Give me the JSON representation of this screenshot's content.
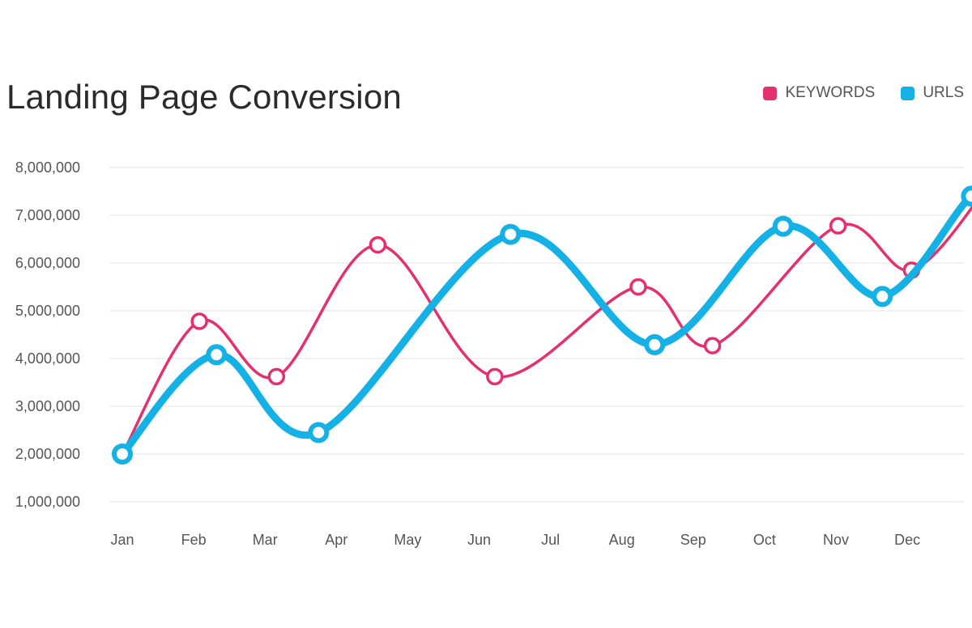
{
  "chart_data": {
    "type": "line",
    "title": "Landing Page Conversion",
    "xlabel": "",
    "ylabel": "",
    "categories": [
      "Jan",
      "Feb",
      "Mar",
      "Apr",
      "May",
      "Jun",
      "Jul",
      "Aug",
      "Sep",
      "Oct",
      "Nov",
      "Dec"
    ],
    "yticks": [
      "1,000,000",
      "2,000,000",
      "3,000,000",
      "4,000,000",
      "5,000,000",
      "6,000,000",
      "7,000,000",
      "8,000,000"
    ],
    "ylim": [
      1000000,
      8000000
    ],
    "grid": true,
    "legend_placement": "top-right",
    "series": [
      {
        "name": "KEYWORDS",
        "color": "#e5306e",
        "points": [
          {
            "x": 0.0,
            "y": 2000000
          },
          {
            "x": 1.08,
            "y": 4780000
          },
          {
            "x": 2.16,
            "y": 3620000
          },
          {
            "x": 3.58,
            "y": 6380000
          },
          {
            "x": 5.22,
            "y": 3620000
          },
          {
            "x": 7.23,
            "y": 5500000
          },
          {
            "x": 8.27,
            "y": 4270000
          },
          {
            "x": 10.03,
            "y": 6780000
          },
          {
            "x": 11.06,
            "y": 5850000
          },
          {
            "x": 12.11,
            "y": 7560000
          }
        ]
      },
      {
        "name": "URLS",
        "color": "#14b1e7",
        "points": [
          {
            "x": 0.0,
            "y": 2000000
          },
          {
            "x": 1.32,
            "y": 4080000
          },
          {
            "x": 2.75,
            "y": 2450000
          },
          {
            "x": 5.44,
            "y": 6600000
          },
          {
            "x": 7.46,
            "y": 4290000
          },
          {
            "x": 9.26,
            "y": 6770000
          },
          {
            "x": 10.65,
            "y": 5300000
          },
          {
            "x": 11.9,
            "y": 7400000
          },
          {
            "x": 12.17,
            "y": 6930000
          }
        ]
      }
    ]
  }
}
